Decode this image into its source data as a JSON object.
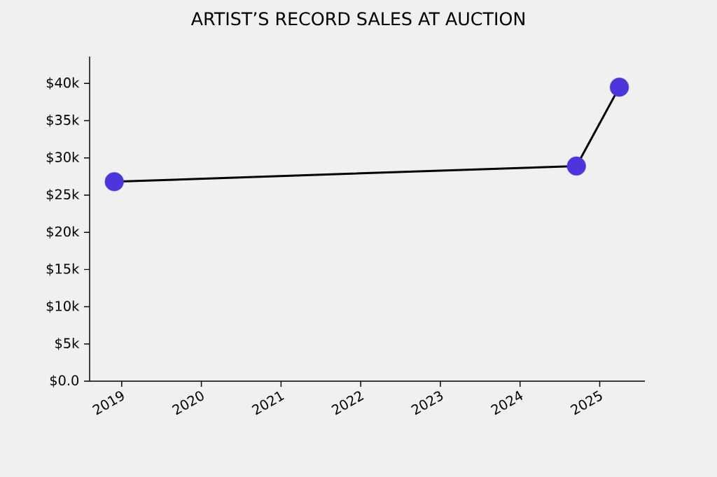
{
  "chart_data": {
    "type": "line",
    "title": "ARTIST’S RECORD SALES AT AUCTION",
    "x": [
      "2018-11-28",
      "2024-09-16",
      "2025-04-01"
    ],
    "series": [
      {
        "color": "#4b35dd",
        "values": [
          26800,
          28900,
          39500
        ]
      }
    ],
    "marker": "circle",
    "line_style": "solid",
    "xlim": [
      "2018-08-07",
      "2025-07-27"
    ],
    "xticks": [
      {
        "value": "2019",
        "label": "2019"
      },
      {
        "value": "2020",
        "label": "2020"
      },
      {
        "value": "2021",
        "label": "2021"
      },
      {
        "value": "2022",
        "label": "2022"
      },
      {
        "value": "2023",
        "label": "2023"
      },
      {
        "value": "2024",
        "label": "2024"
      },
      {
        "value": "2025",
        "label": "2025"
      }
    ],
    "ylim": [
      0,
      43600
    ],
    "yticks": [
      {
        "value": 0,
        "label": "$0.0"
      },
      {
        "value": 5000,
        "label": "$5k"
      },
      {
        "value": 10000,
        "label": "$10k"
      },
      {
        "value": 15000,
        "label": "$15k"
      },
      {
        "value": 20000,
        "label": "$20k"
      },
      {
        "value": 25000,
        "label": "$25k"
      },
      {
        "value": 30000,
        "label": "$30k"
      },
      {
        "value": 35000,
        "label": "$35k"
      },
      {
        "value": 40000,
        "label": "$40k"
      }
    ]
  }
}
